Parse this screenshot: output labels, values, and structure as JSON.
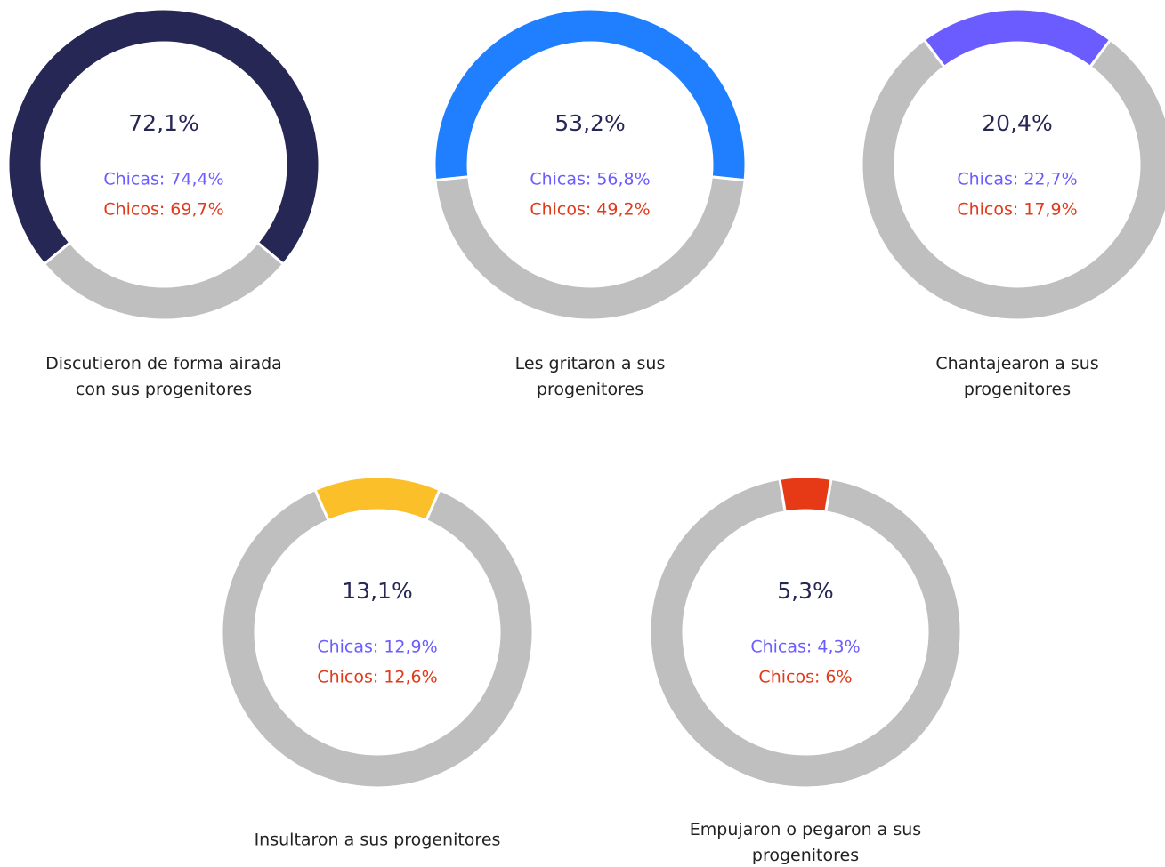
{
  "chart_data": [
    {
      "type": "donut",
      "title": [
        "Discutieron de forma airada",
        "con sus progenitores"
      ],
      "values": [
        72.1
      ],
      "value_labels": [
        "72,1%"
      ],
      "color": "#262754",
      "rest_color": "#bfbfbf",
      "breakdown": [
        {
          "label": "Chicas: 74,4%",
          "value": 74.4,
          "color": "#6b5cff"
        },
        {
          "label": "Chicos: 69,7%",
          "value": 69.7,
          "color": "#e03a1a"
        }
      ]
    },
    {
      "type": "donut",
      "title": [
        "Les gritaron a sus",
        "progenitores"
      ],
      "values": [
        53.2
      ],
      "value_labels": [
        "53,2%"
      ],
      "color": "#1f7fff",
      "rest_color": "#bfbfbf",
      "breakdown": [
        {
          "label": "Chicas: 56,8%",
          "value": 56.8,
          "color": "#6b5cff"
        },
        {
          "label": "Chicos: 49,2%",
          "value": 49.2,
          "color": "#e03a1a"
        }
      ]
    },
    {
      "type": "donut",
      "title": [
        "Chantajearon a sus",
        "progenitores"
      ],
      "values": [
        20.4
      ],
      "value_labels": [
        "20,4%"
      ],
      "color": "#6a5cff",
      "rest_color": "#bfbfbf",
      "breakdown": [
        {
          "label": "Chicas: 22,7%",
          "value": 22.7,
          "color": "#6b5cff"
        },
        {
          "label": "Chicos: 17,9%",
          "value": 17.9,
          "color": "#e03a1a"
        }
      ]
    },
    {
      "type": "donut",
      "title": [
        "Insultaron a sus progenitores"
      ],
      "values": [
        13.1
      ],
      "value_labels": [
        "13,1%"
      ],
      "color": "#fbbf29",
      "rest_color": "#bfbfbf",
      "breakdown": [
        {
          "label": "Chicas: 12,9%",
          "value": 12.9,
          "color": "#6b5cff"
        },
        {
          "label": "Chicos: 12,6%",
          "value": 12.6,
          "color": "#e03a1a"
        }
      ]
    },
    {
      "type": "donut",
      "title": [
        "Empujaron o pegaron a sus",
        "progenitores"
      ],
      "values": [
        5.3
      ],
      "value_labels": [
        "5,3%"
      ],
      "color": "#e63a17",
      "rest_color": "#bfbfbf",
      "breakdown": [
        {
          "label": "Chicas: 4,3%",
          "value": 4.3,
          "color": "#6b5cff"
        },
        {
          "label": "Chicos: 6%",
          "value": 6,
          "color": "#e03a1a"
        }
      ]
    }
  ]
}
